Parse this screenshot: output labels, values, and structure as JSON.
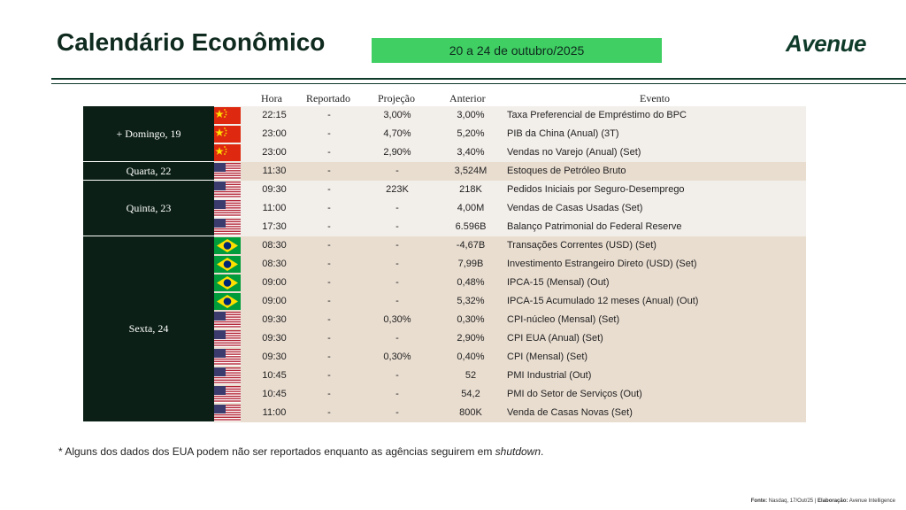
{
  "title": "Calendário Econômico",
  "date_range": "20 a 24 de outubro/2025",
  "logo": "AVENUE",
  "headers": {
    "hora": "Hora",
    "reportado": "Reportado",
    "projecao": "Projeção",
    "anterior": "Anterior",
    "evento": "Evento"
  },
  "days": [
    {
      "label": "+  Domingo, 19",
      "rows": 3
    },
    {
      "label": "Quarta, 22",
      "rows": 1
    },
    {
      "label": "Quinta, 23",
      "rows": 3
    },
    {
      "label": "Sexta, 24",
      "rows": 10
    }
  ],
  "rows": [
    {
      "flag": "cn",
      "hora": "22:15",
      "rep": "-",
      "proj": "3,00%",
      "ant": "3,00%",
      "evento": "Taxa Preferencial de Empréstimo do BPC",
      "shade": "light"
    },
    {
      "flag": "cn",
      "hora": "23:00",
      "rep": "-",
      "proj": "4,70%",
      "ant": "5,20%",
      "evento": "PIB da China (Anual) (3T)",
      "shade": "light"
    },
    {
      "flag": "cn",
      "hora": "23:00",
      "rep": "-",
      "proj": "2,90%",
      "ant": "3,40%",
      "evento": "Vendas no Varejo (Anual) (Set)",
      "shade": "light"
    },
    {
      "flag": "us",
      "hora": "11:30",
      "rep": "-",
      "proj": "-",
      "ant": "3,524M",
      "evento": "Estoques de Petróleo Bruto",
      "shade": "dark"
    },
    {
      "flag": "us",
      "hora": "09:30",
      "rep": "-",
      "proj": "223K",
      "ant": "218K",
      "evento": "Pedidos Iniciais por Seguro-Desemprego",
      "shade": "light"
    },
    {
      "flag": "us",
      "hora": "11:00",
      "rep": "-",
      "proj": "-",
      "ant": "4,00M",
      "evento": "Vendas de Casas Usadas (Set)",
      "shade": "light"
    },
    {
      "flag": "us",
      "hora": "17:30",
      "rep": "-",
      "proj": "-",
      "ant": "6.596B",
      "evento": "Balanço Patrimonial do Federal Reserve",
      "shade": "light"
    },
    {
      "flag": "br",
      "hora": "08:30",
      "rep": "-",
      "proj": "-",
      "ant": "-4,67B",
      "evento": "Transações Correntes (USD) (Set)",
      "shade": "dark"
    },
    {
      "flag": "br",
      "hora": "08:30",
      "rep": "-",
      "proj": "-",
      "ant": "7,99B",
      "evento": "Investimento Estrangeiro Direto (USD) (Set)",
      "shade": "dark"
    },
    {
      "flag": "br",
      "hora": "09:00",
      "rep": "-",
      "proj": "-",
      "ant": "0,48%",
      "evento": "IPCA-15 (Mensal) (Out)",
      "shade": "dark"
    },
    {
      "flag": "br",
      "hora": "09:00",
      "rep": "-",
      "proj": "-",
      "ant": "5,32%",
      "evento": "IPCA-15 Acumulado 12 meses (Anual) (Out)",
      "shade": "dark"
    },
    {
      "flag": "us",
      "hora": "09:30",
      "rep": "-",
      "proj": "0,30%",
      "ant": "0,30%",
      "evento": "CPI-núcleo (Mensal) (Set)",
      "shade": "dark"
    },
    {
      "flag": "us",
      "hora": "09:30",
      "rep": "-",
      "proj": "-",
      "ant": "2,90%",
      "evento": "CPI EUA (Anual) (Set)",
      "shade": "dark"
    },
    {
      "flag": "us",
      "hora": "09:30",
      "rep": "-",
      "proj": "0,30%",
      "ant": "0,40%",
      "evento": "CPI (Mensal) (Set)",
      "shade": "dark"
    },
    {
      "flag": "us",
      "hora": "10:45",
      "rep": "-",
      "proj": "-",
      "ant": "52",
      "evento": "PMI Industrial (Out)",
      "shade": "dark"
    },
    {
      "flag": "us",
      "hora": "10:45",
      "rep": "-",
      "proj": "-",
      "ant": "54,2",
      "evento": "PMI do Setor de Serviços (Out)",
      "shade": "dark"
    },
    {
      "flag": "us",
      "hora": "11:00",
      "rep": "-",
      "proj": "-",
      "ant": "800K",
      "evento": "Venda de Casas Novas (Set)",
      "shade": "dark"
    }
  ],
  "note_prefix": "* Alguns dos dados dos EUA podem não ser reportados enquanto as agências seguirem em ",
  "note_italic": "shutdown",
  "note_suffix": ".",
  "source_label": "Fonte:",
  "source_text": " Nasdaq, 17/Out/25 | ",
  "elab_label": "Elaboração:",
  "elab_text": " Avenue Intelligence"
}
